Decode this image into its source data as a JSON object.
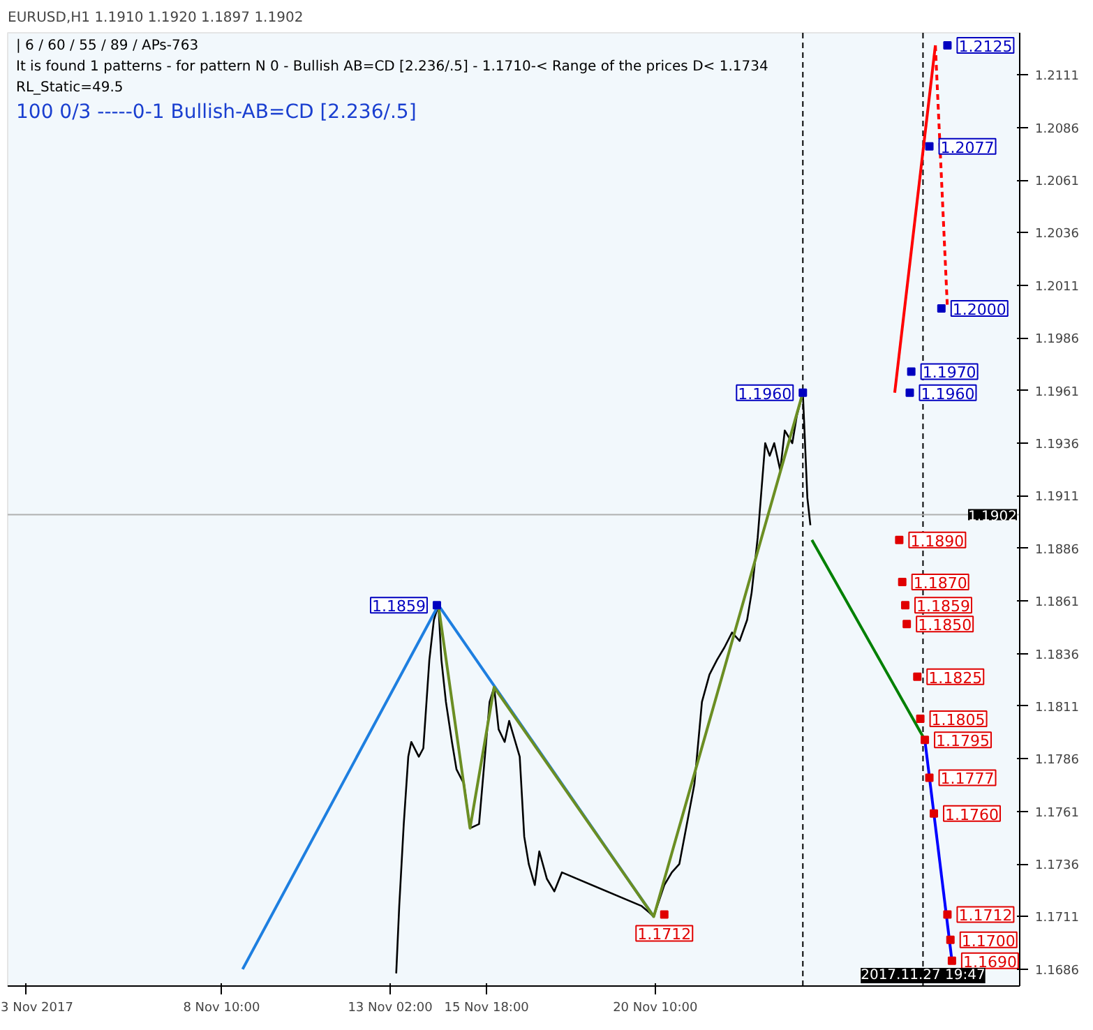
{
  "chart_data": {
    "type": "line",
    "title": "EURUSD,H1  1.1910 1.1920 1.1897 1.1902",
    "annotations": [
      "| 6 / 60 / 55 / 89 / APs-763",
      "It is found 1 patterns  -  for pattern N 0 - Bullish AB=CD [2.236/.5] - 1.1710-< Range of the prices D< 1.1734",
      "RL_Static=49.5",
      "100     0/3     -----0-1     Bullish-AB=CD [2.236/.5]"
    ],
    "xlim": [
      "2017-11-02T12:00",
      "2017-11-30T12:00"
    ],
    "ylim": [
      1.1678,
      1.2131
    ],
    "xticks": [
      {
        "value": "2017-11-03",
        "label": "3 Nov 2017"
      },
      {
        "value": "2017-11-08T10:00",
        "label": "8 Nov 10:00"
      },
      {
        "value": "2017-11-13T02:00",
        "label": "13 Nov 02:00"
      },
      {
        "value": "2017-11-15T18:00",
        "label": "15 Nov 18:00"
      },
      {
        "value": "2017-11-20T10:00",
        "label": "20 Nov 10:00"
      }
    ],
    "yticks": [
      1.1686,
      1.1711,
      1.1736,
      1.1761,
      1.1786,
      1.1811,
      1.1836,
      1.1861,
      1.1886,
      1.1911,
      1.1936,
      1.1961,
      1.1986,
      1.2011,
      1.2036,
      1.2061,
      1.2086,
      1.2111
    ],
    "ref_lines": [
      {
        "axis": "x",
        "value": "2017-11-27T19:47",
        "label": "2017.11.27 19:47",
        "color": "#000000",
        "line_style": "dashed"
      },
      {
        "axis": "x",
        "value": "2017-11-24T12:00",
        "color": "#000000",
        "line_style": "dashed"
      },
      {
        "axis": "y",
        "value": 1.1902,
        "label": "1.1902",
        "color": "#b0b0b0",
        "line_style": "solid"
      }
    ],
    "series": [
      {
        "color": "#000000",
        "x": [
          "2017-11-13T06:00",
          "2017-11-13T08:00",
          "2017-11-13T11:00",
          "2017-11-13T14:00",
          "2017-11-13T16:00",
          "2017-11-13T21:00",
          "2017-11-14T00:00",
          "2017-11-14T04:00",
          "2017-11-14T07:00",
          "2017-11-14T10:00",
          "2017-11-14T12:00",
          "2017-11-14T15:00",
          "2017-11-14T19:00",
          "2017-11-14T22:00",
          "2017-11-15T03:00",
          "2017-11-15T07:00",
          "2017-11-15T13:00",
          "2017-11-15T20:00",
          "2017-11-15T23:00",
          "2017-11-16T02:00",
          "2017-11-16T06:00",
          "2017-11-16T09:00",
          "2017-11-16T16:00",
          "2017-11-16T19:00",
          "2017-11-16T22:00",
          "2017-11-17T02:00",
          "2017-11-17T05:00",
          "2017-11-17T10:00",
          "2017-11-17T15:00",
          "2017-11-17T20:00",
          "2017-11-20T01:00",
          "2017-11-20T06:00",
          "2017-11-20T09:00",
          "2017-11-20T16:00",
          "2017-11-20T21:00",
          "2017-11-21T02:00",
          "2017-11-21T07:00",
          "2017-11-21T12:00",
          "2017-11-21T17:00",
          "2017-11-21T22:00",
          "2017-11-22T03:00",
          "2017-11-22T08:00",
          "2017-11-22T13:00",
          "2017-11-22T18:00",
          "2017-11-22T23:00",
          "2017-11-23T02:00",
          "2017-11-23T06:00",
          "2017-11-23T11:00",
          "2017-11-23T14:00",
          "2017-11-23T17:00",
          "2017-11-23T21:00",
          "2017-11-24T00:00",
          "2017-11-24T05:00",
          "2017-11-24T08:00",
          "2017-11-24T12:00",
          "2017-11-24T15:00",
          "2017-11-24T17:00"
        ],
        "values": [
          1.1684,
          1.1716,
          1.1755,
          1.1787,
          1.1794,
          1.1787,
          1.1791,
          1.1833,
          1.1852,
          1.1859,
          1.1833,
          1.1813,
          1.1794,
          1.1781,
          1.1774,
          1.1753,
          1.1755,
          1.1813,
          1.182,
          1.18,
          1.1794,
          1.1804,
          1.1787,
          1.1749,
          1.1736,
          1.1726,
          1.1742,
          1.1729,
          1.1723,
          1.1732,
          1.1716,
          1.1713,
          1.1711,
          1.1726,
          1.1732,
          1.1736,
          1.1755,
          1.1774,
          1.1813,
          1.1826,
          1.1833,
          1.1839,
          1.1846,
          1.1842,
          1.1852,
          1.1865,
          1.1891,
          1.1936,
          1.193,
          1.1936,
          1.1923,
          1.1942,
          1.1936,
          1.1949,
          1.196,
          1.191,
          1.1897
        ]
      },
      {
        "color": "#1e7fe0",
        "x": [
          "2017-11-09T00:00",
          "2017-11-14T10:00",
          "2017-11-20T09:00"
        ],
        "values": [
          1.1686,
          1.1859,
          1.1711
        ]
      },
      {
        "color": "#6b8e23",
        "x": [
          "2017-11-14T10:00",
          "2017-11-15T07:00",
          "2017-11-15T23:00",
          "2017-11-20T09:00",
          "2017-11-24T12:00"
        ],
        "values": [
          1.1859,
          1.1753,
          1.182,
          1.1711,
          1.196
        ]
      },
      {
        "color": "#ff0000",
        "x": [
          "2017-11-27T01:00",
          "2017-11-28T04:00"
        ],
        "values": [
          1.196,
          1.2125
        ]
      },
      {
        "color": "#ff0000",
        "line_style": "dashed",
        "x": [
          "2017-11-28T04:00",
          "2017-11-28T12:00"
        ],
        "values": [
          1.2125,
          1.2
        ]
      },
      {
        "color": "#008000",
        "x": [
          "2017-11-24T18:00",
          "2017-11-27T21:00"
        ],
        "values": [
          1.189,
          1.1795
        ]
      },
      {
        "color": "#0000ff",
        "x": [
          "2017-11-27T21:00",
          "2017-11-28T15:00"
        ],
        "values": [
          1.1795,
          1.169
        ]
      },
      {
        "type": "scatter",
        "marker": "square",
        "color": "#e00000",
        "x": [
          "2017-11-20T16:00",
          "2017-11-27T04:00",
          "2017-11-27T06:00",
          "2017-11-27T08:00",
          "2017-11-27T09:00",
          "2017-11-27T16:00",
          "2017-11-27T18:00",
          "2017-11-27T21:00",
          "2017-11-28T00:00",
          "2017-11-28T03:00",
          "2017-11-28T12:00",
          "2017-11-28T14:00",
          "2017-11-28T15:00"
        ],
        "values": [
          1.1712,
          1.189,
          1.187,
          1.1859,
          1.185,
          1.1825,
          1.1805,
          1.1795,
          1.1777,
          1.176,
          1.1712,
          1.17,
          1.169
        ],
        "value_labels": [
          "1.1712",
          "1.1890",
          "1.1870",
          "1.1859",
          "1.1850",
          "1.1825",
          "1.1805",
          "1.1795",
          "1.1777",
          "1.1760",
          "1.1712",
          "1.1700",
          "1.1690"
        ]
      },
      {
        "type": "scatter",
        "marker": "square",
        "color": "#0000c0",
        "x": [
          "2017-11-14T09:00",
          "2017-11-24T12:00",
          "2017-11-27T11:00",
          "2017-11-27T12:00",
          "2017-11-28T08:00",
          "2017-11-28T00:00",
          "2017-11-28T12:00"
        ],
        "values": [
          1.1859,
          1.196,
          1.196,
          1.197,
          1.2,
          1.2077,
          1.2125
        ],
        "value_labels": [
          "1.1859",
          "1.1960",
          "1.1960",
          "1.1970",
          "1.2000",
          "1.2077",
          "1.2125"
        ]
      }
    ]
  }
}
